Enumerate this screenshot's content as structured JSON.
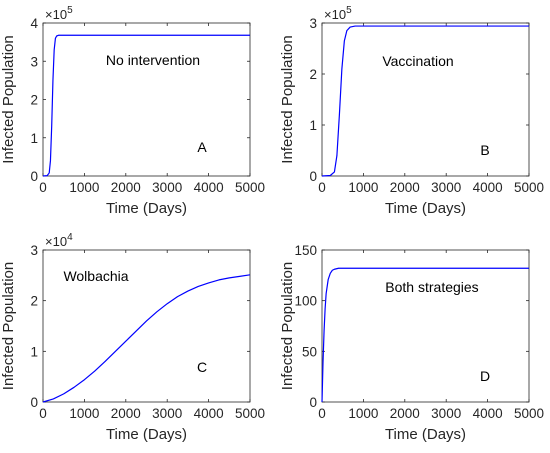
{
  "colors": {
    "line": "#0000ff",
    "axis": "#262626",
    "background": "#ffffff"
  },
  "chart_data": [
    {
      "type": "line",
      "panel_letter": "A",
      "annotation": "No intervention",
      "xlabel": "Time (Days)",
      "ylabel": "Infected Population",
      "xlim": [
        0,
        5000
      ],
      "ylim": [
        0,
        400000
      ],
      "x_ticks": [
        "0",
        "1000",
        "2000",
        "3000",
        "4000",
        "5000"
      ],
      "y_ticks": [
        "0",
        "1",
        "2",
        "3",
        "4"
      ],
      "y_multiplier": {
        "base": "×10",
        "exponent": "5"
      },
      "grid": false,
      "series": [
        {
          "x": [
            0,
            100,
            150,
            180,
            210,
            240,
            270,
            300,
            330,
            380,
            500,
            5000
          ],
          "values": [
            0,
            1000,
            8000,
            40000,
            130000,
            250000,
            330000,
            360000,
            366000,
            368000,
            368000,
            368000
          ]
        }
      ]
    },
    {
      "type": "line",
      "panel_letter": "B",
      "annotation": "Vaccination",
      "xlabel": "Time (Days)",
      "ylabel": "Infected Population",
      "xlim": [
        0,
        5000
      ],
      "ylim": [
        0,
        300000
      ],
      "x_ticks": [
        "0",
        "1000",
        "2000",
        "3000",
        "4000",
        "5000"
      ],
      "y_ticks": [
        "0",
        "1",
        "2",
        "3"
      ],
      "y_multiplier": {
        "base": "×10",
        "exponent": "5"
      },
      "grid": false,
      "series": [
        {
          "x": [
            0,
            200,
            300,
            360,
            420,
            480,
            540,
            600,
            680,
            800,
            5000
          ],
          "values": [
            0,
            1000,
            8000,
            40000,
            120000,
            210000,
            265000,
            285000,
            292000,
            294000,
            294000
          ]
        }
      ]
    },
    {
      "type": "line",
      "panel_letter": "C",
      "annotation": "Wolbachia",
      "xlabel": "Time (Days)",
      "ylabel": "Infected Population",
      "xlim": [
        0,
        5000
      ],
      "ylim": [
        0,
        30000
      ],
      "x_ticks": [
        "0",
        "1000",
        "2000",
        "3000",
        "4000",
        "5000"
      ],
      "y_ticks": [
        "0",
        "1",
        "2",
        "3"
      ],
      "y_multiplier": {
        "base": "×10",
        "exponent": "4"
      },
      "grid": false,
      "series": [
        {
          "x": [
            0,
            250,
            500,
            750,
            1000,
            1250,
            1500,
            1750,
            2000,
            2250,
            2500,
            2750,
            3000,
            3250,
            3500,
            3750,
            4000,
            4250,
            4500,
            4750,
            5000
          ],
          "values": [
            0,
            600,
            1600,
            2900,
            4400,
            6100,
            8000,
            10000,
            12000,
            14000,
            16000,
            17800,
            19400,
            20800,
            21900,
            22800,
            23500,
            24100,
            24500,
            24800,
            25100
          ]
        }
      ]
    },
    {
      "type": "line",
      "panel_letter": "D",
      "annotation": "Both strategies",
      "xlabel": "Time (Days)",
      "ylabel": "Infected Population",
      "xlim": [
        0,
        5000
      ],
      "ylim": [
        0,
        150
      ],
      "x_ticks": [
        "0",
        "1000",
        "2000",
        "3000",
        "4000",
        "5000"
      ],
      "y_ticks": [
        "0",
        "50",
        "100",
        "150"
      ],
      "y_multiplier": null,
      "grid": false,
      "series": [
        {
          "x": [
            0,
            25,
            50,
            75,
            100,
            150,
            200,
            250,
            300,
            400,
            500,
            5000
          ],
          "values": [
            0,
            40,
            70,
            92,
            107,
            121,
            127,
            130,
            131,
            132,
            132,
            132
          ]
        }
      ]
    }
  ]
}
